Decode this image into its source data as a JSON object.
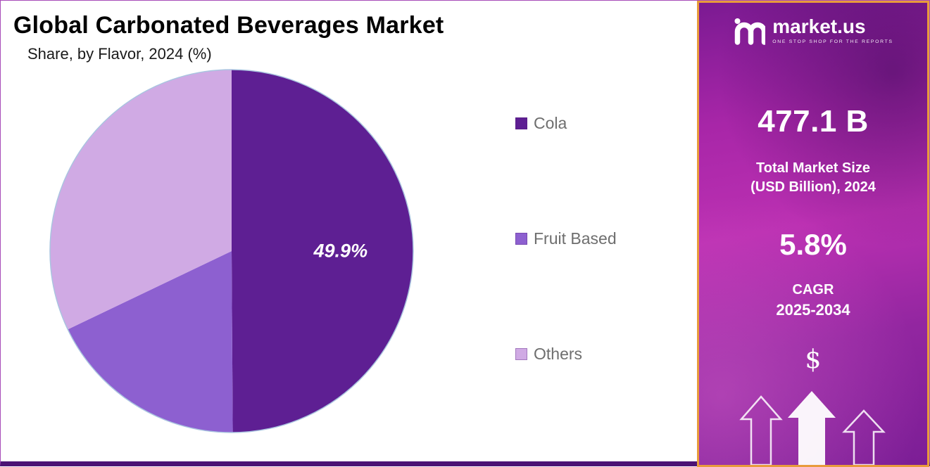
{
  "header": {
    "title": "Global Carbonated Beverages Market",
    "subtitle": "Share, by Flavor, 2024 (%)"
  },
  "chart_data": {
    "type": "pie",
    "title": "Global Carbonated Beverages Market Share, by Flavor, 2024 (%)",
    "legend_position": "right",
    "start_angle_deg": 0,
    "direction": "clockwise",
    "slices": [
      {
        "name": "Cola",
        "value": 49.9,
        "color": "#5e1f93",
        "label": "49.9%"
      },
      {
        "name": "Fruit Based",
        "value": 18.0,
        "color": "#8d60d0",
        "label": ""
      },
      {
        "name": "Others",
        "value": 32.1,
        "color": "#d0aae4",
        "label": ""
      }
    ],
    "outline_color": "#aac4e0"
  },
  "sidebar": {
    "brand": {
      "name": "market.us",
      "tagline": "ONE STOP SHOP FOR THE REPORTS"
    },
    "stats": [
      {
        "value": "477.1 B",
        "caption_line1": "Total Market Size",
        "caption_line2": "(USD Billion), 2024"
      },
      {
        "value": "5.8%",
        "caption_line1": "CAGR",
        "caption_line2": "2025-2034"
      }
    ],
    "dollar_symbol": "$",
    "colors": {
      "border": "#e89b3c",
      "gradient_top": "#bb30b2",
      "gradient_bottom": "#7c1e96"
    }
  }
}
